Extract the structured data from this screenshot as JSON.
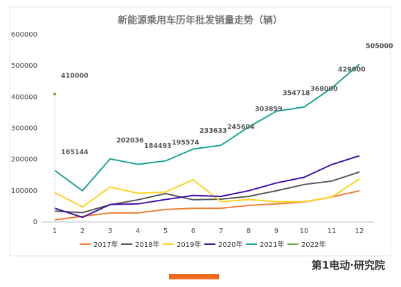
{
  "chart_data": {
    "type": "line",
    "title": "新能源乘用车历年批发销量走势（辆）",
    "categories": [
      "1",
      "2",
      "3",
      "4",
      "5",
      "6",
      "7",
      "8",
      "9",
      "10",
      "11",
      "12"
    ],
    "ylim": [
      0,
      600000
    ],
    "yticks": [
      0,
      100000,
      200000,
      300000,
      400000,
      500000,
      600000
    ],
    "grid": false,
    "legend": "bottom",
    "series": [
      {
        "name": "2017年",
        "color": "#ed7d31",
        "values": [
          7000,
          18000,
          29000,
          29000,
          40000,
          44000,
          44000,
          53000,
          58000,
          64000,
          80000,
          100000
        ]
      },
      {
        "name": "2018年",
        "color": "#555555",
        "values": [
          35000,
          30000,
          55000,
          71000,
          91000,
          71000,
          73000,
          82000,
          100000,
          120000,
          131000,
          160000
        ]
      },
      {
        "name": "2019年",
        "color": "#ffd21f",
        "values": [
          94000,
          48000,
          112000,
          92000,
          96000,
          135000,
          65000,
          72000,
          65000,
          65000,
          80000,
          138000
        ]
      },
      {
        "name": "2020年",
        "color": "#3d0fa8",
        "values": [
          44000,
          15000,
          56000,
          58000,
          72000,
          85000,
          82000,
          100000,
          125000,
          143000,
          184000,
          212000
        ]
      },
      {
        "name": "2021年",
        "color": "#1aa394",
        "values": [
          165144,
          100000,
          202036,
          184493,
          195574,
          233633,
          245604,
          303859,
          354718,
          368000,
          429000,
          505000
        ],
        "value_labels": [
          "165144",
          null,
          "202036",
          "184493",
          "195574",
          "233633",
          "245604",
          "303859",
          "354718",
          "368000",
          "429000",
          "505000"
        ]
      },
      {
        "name": "2022年",
        "color": "#70ad47",
        "values": [
          410000,
          null,
          null,
          null,
          null,
          null,
          null,
          null,
          null,
          null,
          null,
          null
        ],
        "value_labels": [
          "410000",
          null,
          null,
          null,
          null,
          null,
          null,
          null,
          null,
          null,
          null,
          null
        ]
      }
    ]
  },
  "brand": "第1电动·研究院"
}
